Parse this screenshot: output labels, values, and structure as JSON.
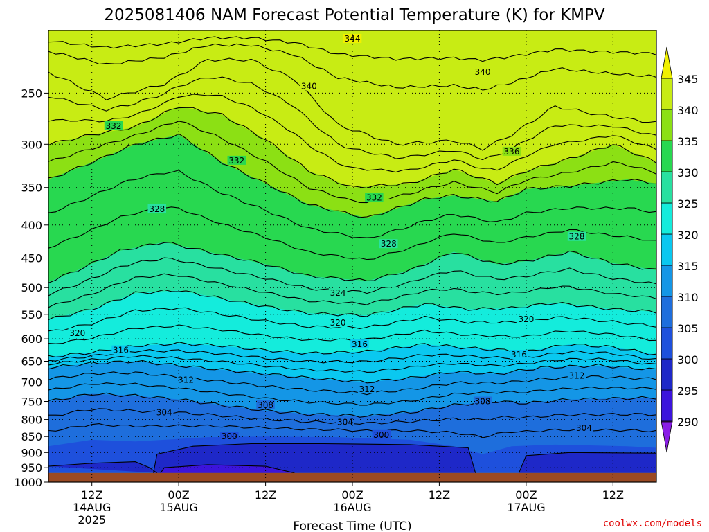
{
  "chart_data": {
    "type": "heatmap",
    "title": "2025081406 NAM Forecast Potential Temperature (K) for KMPV",
    "xlabel": "Forecast Time (UTC)",
    "ylabel": "",
    "x_ticks": [
      {
        "line1": "12Z",
        "line2": "14AUG",
        "line3": "2025",
        "hours": 6
      },
      {
        "line1": "00Z",
        "line2": "15AUG",
        "line3": "",
        "hours": 18
      },
      {
        "line1": "12Z",
        "line2": "",
        "line3": "",
        "hours": 30
      },
      {
        "line1": "00Z",
        "line2": "16AUG",
        "line3": "",
        "hours": 42
      },
      {
        "line1": "12Z",
        "line2": "",
        "line3": "",
        "hours": 54
      },
      {
        "line1": "00Z",
        "line2": "17AUG",
        "line3": "",
        "hours": 66
      },
      {
        "line1": "12Z",
        "line2": "",
        "line3": "",
        "hours": 78
      }
    ],
    "xlim_hours": [
      0,
      84
    ],
    "y_scale": "log-pressure",
    "ylim_hpa": [
      1000,
      200
    ],
    "y_ticks": [
      250,
      300,
      350,
      400,
      450,
      500,
      550,
      600,
      650,
      700,
      750,
      800,
      850,
      900,
      950,
      1000
    ],
    "surface_pressure_hpa": 968,
    "grid": true,
    "colorbar": {
      "levels": [
        290,
        295,
        300,
        305,
        310,
        315,
        320,
        325,
        330,
        335,
        340,
        345
      ],
      "colors": [
        "#8a1ee6",
        "#3c14dc",
        "#1e28c8",
        "#1e50dc",
        "#1e6edc",
        "#1496e6",
        "#0ac8f0",
        "#14ecdc",
        "#28e0a0",
        "#28d850",
        "#8ce014",
        "#c8ec14",
        "#f0f000"
      ],
      "placement": "right"
    },
    "contour_interval": 2,
    "contour_labels": [
      {
        "value": "344",
        "hours": 42,
        "hpa": 206
      },
      {
        "value": "340",
        "hours": 36,
        "hpa": 244
      },
      {
        "value": "340",
        "hours": 60,
        "hpa": 232
      },
      {
        "value": "336",
        "hours": 64,
        "hpa": 308
      },
      {
        "value": "332",
        "hours": 9,
        "hpa": 281
      },
      {
        "value": "332",
        "hours": 26,
        "hpa": 318
      },
      {
        "value": "332",
        "hours": 45,
        "hpa": 363
      },
      {
        "value": "328",
        "hours": 15,
        "hpa": 378
      },
      {
        "value": "328",
        "hours": 47,
        "hpa": 428
      },
      {
        "value": "328",
        "hours": 73,
        "hpa": 417
      },
      {
        "value": "324",
        "hours": 40,
        "hpa": 510
      },
      {
        "value": "320",
        "hours": 4,
        "hpa": 588
      },
      {
        "value": "320",
        "hours": 40,
        "hpa": 567
      },
      {
        "value": "320",
        "hours": 66,
        "hpa": 560
      },
      {
        "value": "316",
        "hours": 10,
        "hpa": 625
      },
      {
        "value": "316",
        "hours": 43,
        "hpa": 612
      },
      {
        "value": "316",
        "hours": 65,
        "hpa": 635
      },
      {
        "value": "312",
        "hours": 19,
        "hpa": 695
      },
      {
        "value": "312",
        "hours": 44,
        "hpa": 718
      },
      {
        "value": "312",
        "hours": 73,
        "hpa": 685
      },
      {
        "value": "308",
        "hours": 30,
        "hpa": 760
      },
      {
        "value": "308",
        "hours": 60,
        "hpa": 750
      },
      {
        "value": "304",
        "hours": 16,
        "hpa": 780
      },
      {
        "value": "304",
        "hours": 41,
        "hpa": 808
      },
      {
        "value": "304",
        "hours": 74,
        "hpa": 825
      },
      {
        "value": "300",
        "hours": 25,
        "hpa": 850
      },
      {
        "value": "300",
        "hours": 46,
        "hpa": 845
      }
    ],
    "layers": [
      {
        "theta": 341,
        "anchors": [
          [
            0,
            232
          ],
          [
            8,
            255
          ],
          [
            16,
            242
          ],
          [
            22,
            222
          ],
          [
            28,
            222
          ],
          [
            34,
            238
          ],
          [
            40,
            280
          ],
          [
            48,
            300
          ],
          [
            56,
            296
          ],
          [
            60,
            305
          ],
          [
            64,
            290
          ],
          [
            70,
            262
          ],
          [
            76,
            270
          ],
          [
            84,
            278
          ]
        ]
      },
      {
        "theta": 336,
        "anchors": [
          [
            0,
            300
          ],
          [
            6,
            290
          ],
          [
            12,
            282
          ],
          [
            18,
            262
          ],
          [
            24,
            270
          ],
          [
            30,
            295
          ],
          [
            36,
            330
          ],
          [
            42,
            350
          ],
          [
            50,
            345
          ],
          [
            56,
            328
          ],
          [
            62,
            345
          ],
          [
            66,
            330
          ],
          [
            72,
            316
          ],
          [
            78,
            300
          ],
          [
            84,
            320
          ]
        ]
      },
      {
        "theta": 332,
        "anchors": [
          [
            0,
            340
          ],
          [
            6,
            320
          ],
          [
            12,
            300
          ],
          [
            18,
            290
          ],
          [
            24,
            320
          ],
          [
            30,
            345
          ],
          [
            36,
            372
          ],
          [
            44,
            390
          ],
          [
            52,
            365
          ],
          [
            56,
            360
          ],
          [
            62,
            368
          ],
          [
            66,
            352
          ],
          [
            72,
            348
          ],
          [
            80,
            340
          ],
          [
            84,
            345
          ]
        ]
      },
      {
        "theta": 327,
        "anchors": [
          [
            0,
            490
          ],
          [
            4,
            470
          ],
          [
            10,
            438
          ],
          [
            16,
            425
          ],
          [
            22,
            440
          ],
          [
            30,
            460
          ],
          [
            36,
            480
          ],
          [
            44,
            488
          ],
          [
            50,
            470
          ],
          [
            56,
            440
          ],
          [
            62,
            460
          ],
          [
            66,
            455
          ],
          [
            72,
            440
          ],
          [
            78,
            458
          ],
          [
            84,
            470
          ]
        ]
      },
      {
        "theta": 322,
        "anchors": [
          [
            0,
            560
          ],
          [
            6,
            540
          ],
          [
            12,
            510
          ],
          [
            18,
            505
          ],
          [
            24,
            520
          ],
          [
            30,
            535
          ],
          [
            36,
            548
          ],
          [
            44,
            552
          ],
          [
            52,
            530
          ],
          [
            58,
            540
          ],
          [
            64,
            538
          ],
          [
            70,
            528
          ],
          [
            78,
            540
          ],
          [
            84,
            545
          ]
        ]
      },
      {
        "theta": 317,
        "anchors": [
          [
            0,
            640
          ],
          [
            6,
            630
          ],
          [
            12,
            615
          ],
          [
            18,
            610
          ],
          [
            24,
            615
          ],
          [
            30,
            625
          ],
          [
            36,
            632
          ],
          [
            44,
            628
          ],
          [
            52,
            612
          ],
          [
            58,
            620
          ],
          [
            66,
            628
          ],
          [
            72,
            612
          ],
          [
            78,
            618
          ],
          [
            84,
            635
          ]
        ]
      },
      {
        "theta": 312,
        "anchors": [
          [
            0,
            665
          ],
          [
            6,
            655
          ],
          [
            12,
            650
          ],
          [
            18,
            660
          ],
          [
            24,
            670
          ],
          [
            30,
            680
          ],
          [
            36,
            690
          ],
          [
            44,
            700
          ],
          [
            50,
            690
          ],
          [
            56,
            675
          ],
          [
            62,
            680
          ],
          [
            68,
            665
          ],
          [
            76,
            660
          ],
          [
            84,
            670
          ]
        ]
      },
      {
        "theta": 307,
        "anchors": [
          [
            0,
            750
          ],
          [
            6,
            730
          ],
          [
            12,
            735
          ],
          [
            18,
            745
          ],
          [
            24,
            760
          ],
          [
            30,
            775
          ],
          [
            36,
            785
          ],
          [
            44,
            790
          ],
          [
            50,
            780
          ],
          [
            56,
            760
          ],
          [
            62,
            750
          ],
          [
            66,
            755
          ],
          [
            72,
            745
          ],
          [
            84,
            740
          ]
        ]
      },
      {
        "theta": 302,
        "anchors": [
          [
            0,
            880
          ],
          [
            6,
            860
          ],
          [
            12,
            865
          ],
          [
            16,
            860
          ],
          [
            22,
            852
          ],
          [
            30,
            850
          ],
          [
            40,
            852
          ],
          [
            50,
            860
          ],
          [
            56,
            880
          ],
          [
            60,
            905
          ],
          [
            64,
            880
          ],
          [
            70,
            875
          ],
          [
            80,
            880
          ],
          [
            84,
            885
          ]
        ]
      }
    ],
    "stable_pools": [
      {
        "theta": 297,
        "anchors": [
          [
            0,
            945
          ],
          [
            6,
            935
          ],
          [
            12,
            930
          ],
          [
            14,
            950
          ],
          [
            15,
            968
          ]
        ]
      },
      {
        "theta": 297,
        "anchors": [
          [
            14.5,
            968
          ],
          [
            15,
            905
          ],
          [
            20,
            880
          ],
          [
            28,
            872
          ],
          [
            38,
            872
          ],
          [
            50,
            875
          ],
          [
            58,
            885
          ],
          [
            59,
            968
          ]
        ]
      },
      {
        "theta": 297,
        "anchors": [
          [
            65,
            968
          ],
          [
            66,
            910
          ],
          [
            72,
            900
          ],
          [
            84,
            902
          ],
          [
            84,
            968
          ]
        ]
      },
      {
        "theta": 292,
        "anchors": [
          [
            15.5,
            968
          ],
          [
            16,
            950
          ],
          [
            22,
            940
          ],
          [
            30,
            945
          ],
          [
            34,
            968
          ]
        ]
      }
    ]
  },
  "colorbar_labels": {
    "l290": "290",
    "l295": "295",
    "l300": "300",
    "l305": "305",
    "l310": "310",
    "l315": "315",
    "l320": "320",
    "l325": "325",
    "l330": "330",
    "l335": "335",
    "l340": "340",
    "l345": "345"
  },
  "credit": {
    "text": "coolwx.com/models",
    "color": "#e00000"
  },
  "colors": {
    "ground": "#9b4a24",
    "grid": "#000000"
  }
}
